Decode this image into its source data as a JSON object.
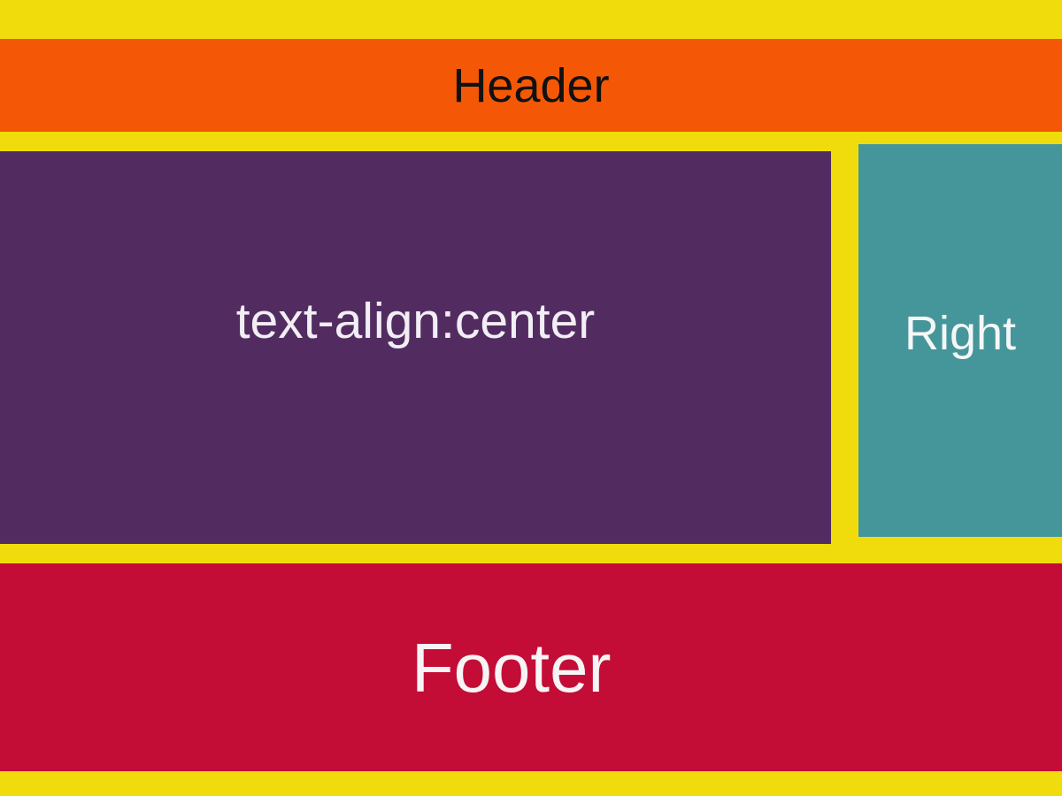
{
  "regions": {
    "header": "Header",
    "main": "text-align:center",
    "right": "Right",
    "footer": "Footer"
  },
  "colors": {
    "background": "#f0dc0c",
    "header": "#f45807",
    "main": "#522c61",
    "right": "#45969a",
    "footer": "#c40d36"
  }
}
